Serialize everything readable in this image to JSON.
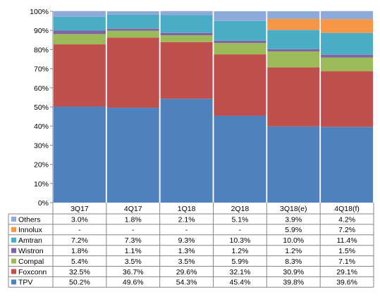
{
  "chart_data": {
    "type": "bar",
    "stacked": true,
    "title": "",
    "xlabel": "",
    "ylabel": "",
    "ylim": [
      0,
      100
    ],
    "yticks": [
      "0%",
      "10%",
      "20%",
      "30%",
      "40%",
      "50%",
      "60%",
      "70%",
      "80%",
      "90%",
      "100%"
    ],
    "grid": false,
    "legend": "data-table-left",
    "categories": [
      "3Q17",
      "4Q17",
      "1Q18",
      "2Q18",
      "3Q18(e)",
      "4Q18(f)"
    ],
    "series": [
      {
        "name": "TPV",
        "color": "#4f81bd",
        "values": [
          50.2,
          49.6,
          54.3,
          45.4,
          39.8,
          39.6
        ],
        "labels": [
          "50.2%",
          "49.6%",
          "54.3%",
          "45.4%",
          "39.8%",
          "39.6%"
        ]
      },
      {
        "name": "Foxconn",
        "color": "#c0504d",
        "values": [
          32.5,
          36.7,
          29.6,
          32.1,
          30.9,
          29.1
        ],
        "labels": [
          "32.5%",
          "36.7%",
          "29.6%",
          "32.1%",
          "30.9%",
          "29.1%"
        ]
      },
      {
        "name": "Compal",
        "color": "#9bbb59",
        "values": [
          5.4,
          3.5,
          3.5,
          5.9,
          8.3,
          7.1
        ],
        "labels": [
          "5.4%",
          "3.5%",
          "3.5%",
          "5.9%",
          "8.3%",
          "7.1%"
        ]
      },
      {
        "name": "Wistron",
        "color": "#8064a2",
        "values": [
          1.8,
          1.1,
          1.3,
          1.2,
          1.2,
          1.5
        ],
        "labels": [
          "1.8%",
          "1.1%",
          "1.3%",
          "1.2%",
          "1.2%",
          "1.5%"
        ]
      },
      {
        "name": "Amtran",
        "color": "#4bacc6",
        "values": [
          7.2,
          7.3,
          9.3,
          10.3,
          10.0,
          11.4
        ],
        "labels": [
          "7.2%",
          "7.3%",
          "9.3%",
          "10.3%",
          "10.0%",
          "11.4%"
        ]
      },
      {
        "name": "Innolux",
        "color": "#f79646",
        "values": [
          null,
          null,
          null,
          null,
          5.9,
          7.2
        ],
        "labels": [
          "-",
          "-",
          "-",
          "-",
          "5.9%",
          "7.2%"
        ]
      },
      {
        "name": "Others",
        "color": "#8eaadb",
        "values": [
          3.0,
          1.8,
          2.1,
          5.1,
          3.9,
          4.2
        ],
        "labels": [
          "3.0%",
          "1.8%",
          "2.1%",
          "5.1%",
          "3.9%",
          "4.2%"
        ]
      }
    ],
    "table_row_order": [
      "Others",
      "Innolux",
      "Amtran",
      "Wistron",
      "Compal",
      "Foxconn",
      "TPV"
    ]
  }
}
